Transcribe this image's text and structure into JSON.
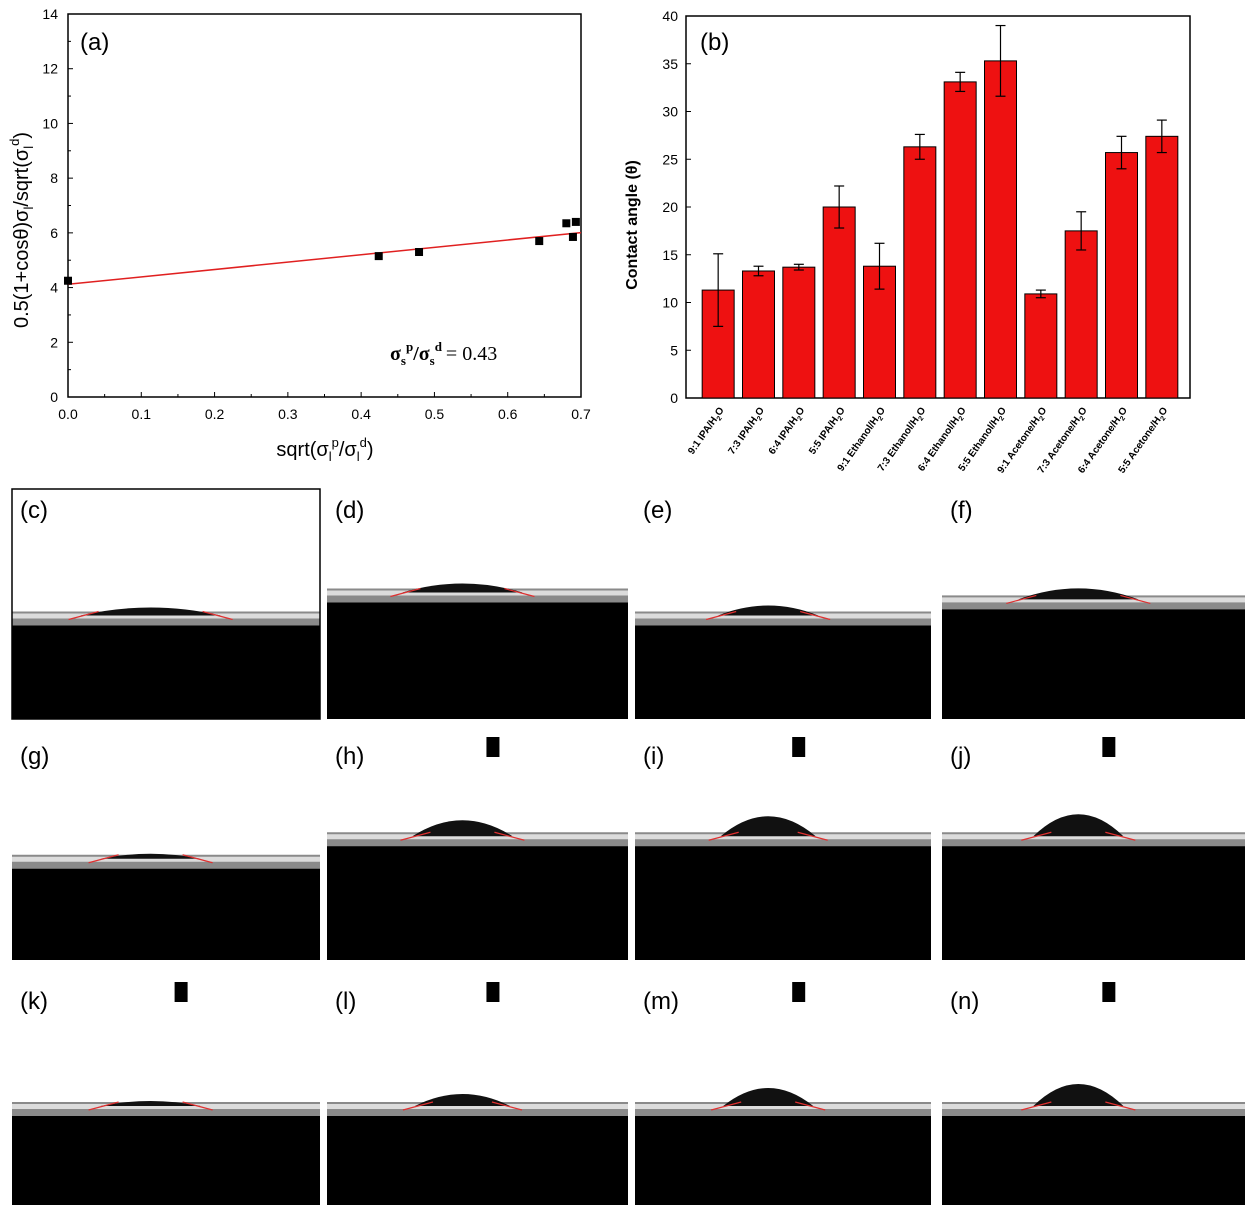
{
  "chart_data": [
    {
      "panel": "(a)",
      "type": "scatter",
      "x_ticks": [
        "0.0",
        "0.1",
        "0.2",
        "0.3",
        "0.4",
        "0.5",
        "0.6",
        "0.7"
      ],
      "y_ticks": [
        "0",
        "2",
        "4",
        "6",
        "8",
        "10",
        "12",
        "14"
      ],
      "xlim": [
        0,
        0.7
      ],
      "ylim": [
        0,
        14
      ],
      "points": [
        {
          "x": 0.0,
          "y": 4.25
        },
        {
          "x": 0.424,
          "y": 5.15
        },
        {
          "x": 0.479,
          "y": 5.3
        },
        {
          "x": 0.643,
          "y": 5.7
        },
        {
          "x": 0.68,
          "y": 6.35
        },
        {
          "x": 0.689,
          "y": 5.85
        },
        {
          "x": 0.693,
          "y": 6.4
        }
      ],
      "fit_line": {
        "intercept": 4.12,
        "slope": 2.7,
        "color": "#e02020"
      },
      "annotation_main": "σ",
      "annotation_sup1": "p",
      "annotation_mid": "/σ",
      "annotation_sup2": "d",
      "annotation_value": "= 0.43",
      "annotation_sub": "s"
    },
    {
      "panel": "(b)",
      "type": "bar",
      "ylabel": "Contact angle (θ)",
      "y_ticks": [
        "0",
        "5",
        "10",
        "15",
        "20",
        "25",
        "30",
        "35",
        "40"
      ],
      "ylim": [
        0,
        40
      ],
      "bar_color": "#ee1111",
      "categories": [
        {
          "pre": "9:1 IPA/H",
          "post": "O"
        },
        {
          "pre": "7:3 IPA/H",
          "post": "O"
        },
        {
          "pre": "6:4 IPA/H",
          "post": "O"
        },
        {
          "pre": "5:5 IPA/H",
          "post": "O"
        },
        {
          "pre": "9:1 Ethanol/H",
          "post": "O"
        },
        {
          "pre": "7:3 Ethanol/H",
          "post": "O"
        },
        {
          "pre": "6:4 Ethanol/H",
          "post": "O"
        },
        {
          "pre": "5:5 Ethanol/H",
          "post": "O"
        },
        {
          "pre": "9:1 Acetone/H",
          "post": "O"
        },
        {
          "pre": "7:3 Acetone/H",
          "post": "O"
        },
        {
          "pre": "6:4 Acetone/H",
          "post": "O"
        },
        {
          "pre": "5:5 Acetone/H",
          "post": "O"
        }
      ],
      "values": [
        11.3,
        13.3,
        13.7,
        20.0,
        13.8,
        26.3,
        33.1,
        35.3,
        10.9,
        17.5,
        25.7,
        27.4
      ],
      "errors": [
        3.8,
        0.5,
        0.3,
        2.2,
        2.4,
        1.3,
        1.0,
        3.7,
        0.4,
        2.0,
        1.7,
        1.7
      ]
    }
  ],
  "droplet_images": [
    {
      "label": "(c)",
      "surface": 0.55,
      "drop_width": 140,
      "drop_height": 8,
      "needle": false
    },
    {
      "label": "(d)",
      "surface": 0.45,
      "drop_width": 120,
      "drop_height": 9,
      "needle": false
    },
    {
      "label": "(e)",
      "surface": 0.55,
      "drop_width": 100,
      "drop_height": 10,
      "needle": false
    },
    {
      "label": "(f)",
      "surface": 0.48,
      "drop_width": 120,
      "drop_height": 11,
      "needle": false
    },
    {
      "label": "(g)",
      "surface": 0.55,
      "drop_width": 100,
      "drop_height": 5,
      "needle": false
    },
    {
      "label": "(h)",
      "surface": 0.45,
      "drop_width": 100,
      "drop_height": 16,
      "needle": true
    },
    {
      "label": "(i)",
      "surface": 0.45,
      "drop_width": 95,
      "drop_height": 20,
      "needle": true
    },
    {
      "label": "(j)",
      "surface": 0.45,
      "drop_width": 90,
      "drop_height": 22,
      "needle": true
    },
    {
      "label": "(k)",
      "surface": 0.56,
      "drop_width": 100,
      "drop_height": 5,
      "needle": true
    },
    {
      "label": "(l)",
      "surface": 0.56,
      "drop_width": 95,
      "drop_height": 12,
      "needle": true
    },
    {
      "label": "(m)",
      "surface": 0.56,
      "drop_width": 90,
      "drop_height": 18,
      "needle": true
    },
    {
      "label": "(n)",
      "surface": 0.56,
      "drop_width": 90,
      "drop_height": 22,
      "needle": true
    }
  ]
}
